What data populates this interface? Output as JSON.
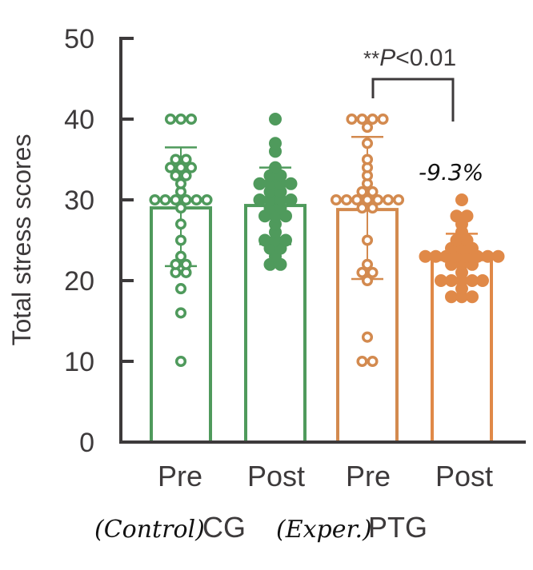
{
  "chart_data": {
    "type": "bar",
    "title": "",
    "xlabel": "",
    "ylabel": "Total stress scores",
    "ylim": [
      0,
      50
    ],
    "yticks": [
      0,
      10,
      20,
      30,
      40,
      50
    ],
    "grid": false,
    "categories": [
      "Pre",
      "Post",
      "Pre",
      "Post"
    ],
    "groups": [
      {
        "name": "CG",
        "annotation": "(Control)",
        "categories": [
          0,
          1
        ]
      },
      {
        "name": "PTG",
        "annotation": "(Exper.)",
        "categories": [
          2,
          3
        ]
      }
    ],
    "bars": [
      {
        "group": "CG",
        "label": "Pre",
        "mean": 29.0,
        "sd_upper": 36.5,
        "sd_lower": 21.8,
        "color": "#4f9a5c",
        "marker": "hollow",
        "points": [
          40,
          40,
          40,
          35,
          35,
          34,
          34,
          34,
          33,
          33,
          32,
          31,
          30,
          30,
          30,
          30,
          30,
          30,
          29,
          27,
          25,
          23,
          22,
          22,
          21,
          21,
          19,
          16,
          10
        ]
      },
      {
        "group": "CG",
        "label": "Post",
        "mean": 29.3,
        "sd_upper": 34.0,
        "sd_lower": 24.5,
        "color": "#4f9a5c",
        "marker": "filled",
        "points": [
          40,
          37,
          36,
          34,
          33,
          33,
          32,
          32,
          32,
          32,
          31,
          31,
          30,
          30,
          30,
          30,
          29,
          29,
          28,
          28,
          28,
          27,
          26,
          25,
          25,
          25,
          24,
          24,
          23,
          22,
          22
        ]
      },
      {
        "group": "PTG",
        "label": "Pre",
        "mean": 28.8,
        "sd_upper": 37.8,
        "sd_lower": 20.2,
        "color": "#d38a4f",
        "marker": "hollow",
        "points": [
          40,
          40,
          40,
          40,
          39,
          37,
          35,
          34,
          33,
          32,
          31,
          31,
          30,
          30,
          30,
          30,
          30,
          30,
          30,
          29,
          29,
          25,
          22,
          21,
          21,
          20,
          13,
          10,
          10
        ]
      },
      {
        "group": "PTG",
        "label": "Post",
        "mean": 22.6,
        "sd_upper": 25.8,
        "sd_lower": 20.0,
        "color": "#e08948",
        "marker": "filled",
        "points": [
          30,
          28,
          28,
          27,
          26,
          25,
          25,
          24,
          24,
          24,
          23,
          23,
          23,
          23,
          23,
          23,
          23,
          23,
          22,
          22,
          22,
          21,
          20,
          20,
          20,
          20,
          20,
          19,
          18,
          18,
          18
        ]
      }
    ],
    "annotations": [
      {
        "text_stars": "**",
        "text_p": "P",
        "text_rest": "<0.01",
        "between": [
          "PTG Pre",
          "PTG Post"
        ]
      },
      {
        "text": "-9.3%",
        "target": "PTG Post"
      }
    ]
  }
}
